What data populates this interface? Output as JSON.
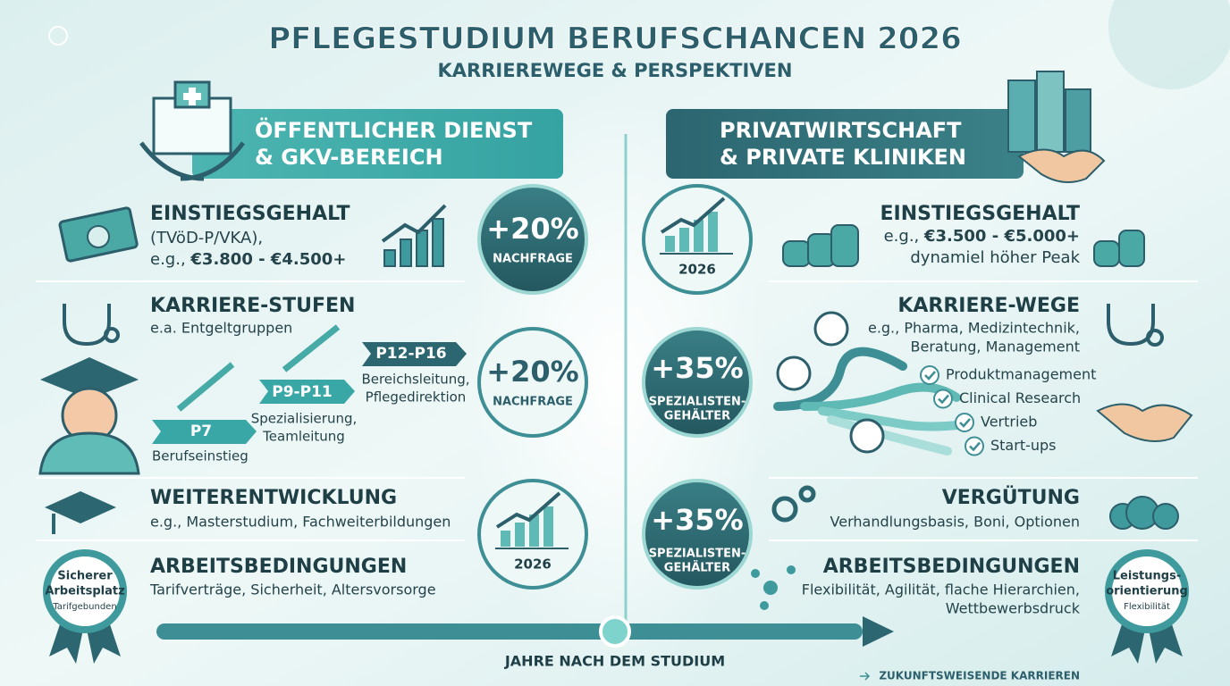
{
  "header": {
    "title": "PFLEGESTUDIUM BERUFSCHANCEN 2026",
    "subtitle": "KARRIEREWEGE & PERSPEKTIVEN"
  },
  "left": {
    "heading": [
      "ÖFFENTLICHER DIENST",
      "& GKV-BEREICH"
    ],
    "salary": {
      "title": "EINSTIEGSGEHALT",
      "note": "(TVöD-P/VKA),",
      "prefix": "e.g., ",
      "range": "€3.800 - €4.500+"
    },
    "career": {
      "title": "KARRIERE-STUFEN",
      "subtitle": "e.a. Entgeltgruppen",
      "steps": [
        {
          "label": "P7",
          "text": [
            "Berufseinstieg"
          ]
        },
        {
          "label": "P9-P11",
          "text": [
            "Spezialisierung,",
            "Teamleitung"
          ]
        },
        {
          "label": "P12-P16",
          "text": [
            "Bereichsleitung,",
            "Pflegedirektion"
          ]
        }
      ]
    },
    "development": {
      "title": "WEITERENTWICKLUNG",
      "text": "e.g., Masterstudium, Fachweiterbildungen"
    },
    "conditions": {
      "title": "ARBEITSBEDINGUNGEN",
      "text": [
        "Tarifverträge, Sicherheit, Altersvorsorge"
      ]
    },
    "badge": [
      "Sicherer",
      "Arbeitsplatz",
      "Tarifgebunden"
    ]
  },
  "center": {
    "left": [
      {
        "value": "+20%",
        "label": [
          "NACHFRAGE"
        ]
      },
      {
        "value": "+20%",
        "label": [
          "NACHFRAGE"
        ]
      },
      {
        "year": "2026"
      }
    ],
    "right": [
      {
        "year": "2026"
      },
      {
        "value": "+35%",
        "label": [
          "SPEZIALISTEN-",
          "GEHÄLTER"
        ]
      },
      {
        "value": "+35%",
        "label": [
          "SPEZIALISTEN-",
          "GEHÄLTER"
        ]
      }
    ]
  },
  "right": {
    "heading": [
      "PRIVATWIRTSCHAFT",
      "& PRIVATE KLINIKEN"
    ],
    "salary": {
      "title": "EINSTIEGSGEHALT",
      "prefix": "e.g., ",
      "range": "€3.500 - €5.000+",
      "note": "dynamiel höher Peak"
    },
    "career": {
      "title": "KARRIERE-WEGE",
      "text": [
        "e.g., Pharma, Medizintechnik,",
        "Beratung, Management"
      ],
      "options": [
        "Produktmanagement",
        "Clinical Research",
        "Vertrieb",
        "Start-ups"
      ]
    },
    "pay": {
      "title": "VERGÜTUNG",
      "text": "Verhandlungsbasis, Boni, Optionen"
    },
    "conditions": {
      "title": "ARBEITSBEDINGUNGEN",
      "text": [
        "Flexibilität, Agilität, flache Hierarchien,",
        "Wettbewerbsdruck"
      ]
    },
    "badge": [
      "Leistungs-",
      "orientierung",
      "Flexibilität"
    ]
  },
  "footer": {
    "axis": "JAHRE NACH DEM STUDIUM",
    "note": "ZUKUNFTSWEISENDE KARRIEREN"
  }
}
